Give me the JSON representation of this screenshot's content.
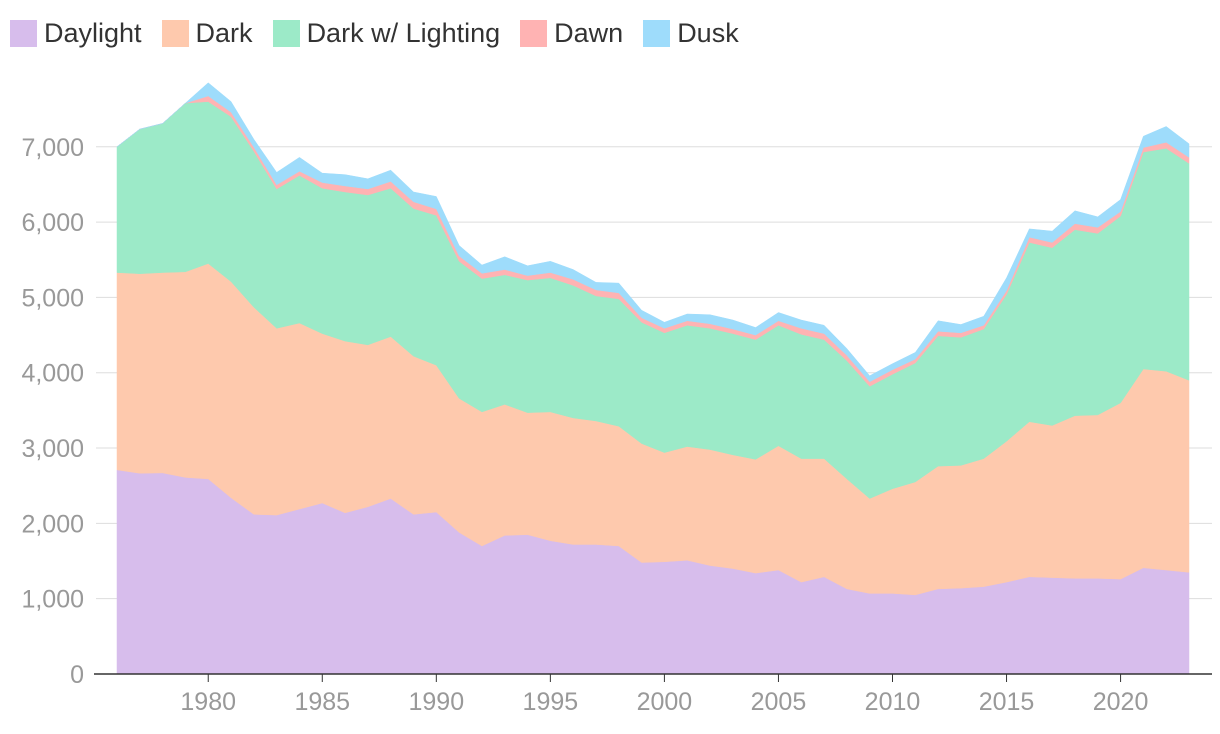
{
  "chart_data": {
    "type": "area",
    "stacked": true,
    "title": "",
    "xlabel": "",
    "ylabel": "",
    "x": [
      1976,
      1977,
      1978,
      1979,
      1980,
      1981,
      1982,
      1983,
      1984,
      1985,
      1986,
      1987,
      1988,
      1989,
      1990,
      1991,
      1992,
      1993,
      1994,
      1995,
      1996,
      1997,
      1998,
      1999,
      2000,
      2001,
      2002,
      2003,
      2004,
      2005,
      2006,
      2007,
      2008,
      2009,
      2010,
      2011,
      2012,
      2013,
      2014,
      2015,
      2016,
      2017,
      2018,
      2019,
      2020,
      2021,
      2022,
      2023
    ],
    "xlim": [
      1976,
      2023
    ],
    "ylim": [
      0,
      7900
    ],
    "x_ticks": [
      1980,
      1985,
      1990,
      1995,
      2000,
      2005,
      2010,
      2015,
      2020
    ],
    "y_ticks": [
      0,
      1000,
      2000,
      3000,
      4000,
      5000,
      6000,
      7000
    ],
    "y_tick_labels": [
      "0",
      "1,000",
      "2,000",
      "3,000",
      "4,000",
      "5,000",
      "6,000",
      "7,000"
    ],
    "grid": "horizontal",
    "legend_position": "top-left",
    "series": [
      {
        "name": "Daylight",
        "color": "#d7bdec",
        "values": [
          2710,
          2665,
          2670,
          2610,
          2590,
          2340,
          2120,
          2110,
          2190,
          2270,
          2140,
          2220,
          2330,
          2120,
          2150,
          1880,
          1700,
          1840,
          1850,
          1770,
          1720,
          1720,
          1700,
          1480,
          1490,
          1510,
          1440,
          1400,
          1340,
          1380,
          1220,
          1290,
          1130,
          1070,
          1070,
          1050,
          1130,
          1140,
          1160,
          1220,
          1290,
          1280,
          1270,
          1270,
          1260,
          1410,
          1380,
          1350
        ]
      },
      {
        "name": "Dark",
        "color": "#fec9ad",
        "values": [
          2620,
          2650,
          2660,
          2730,
          2860,
          2870,
          2750,
          2480,
          2470,
          2250,
          2280,
          2150,
          2150,
          2100,
          1950,
          1780,
          1780,
          1740,
          1620,
          1710,
          1680,
          1640,
          1590,
          1580,
          1450,
          1510,
          1540,
          1510,
          1510,
          1650,
          1640,
          1570,
          1460,
          1260,
          1390,
          1500,
          1630,
          1630,
          1700,
          1870,
          2060,
          2020,
          2160,
          2170,
          2340,
          2640,
          2640,
          2550
        ]
      },
      {
        "name": "Dark w/ Lighting",
        "color": "#9ceac8",
        "values": [
          1670,
          1920,
          1980,
          2240,
          2150,
          2190,
          2070,
          1850,
          1960,
          1930,
          1980,
          1990,
          1970,
          1960,
          1990,
          1820,
          1770,
          1720,
          1760,
          1780,
          1760,
          1660,
          1690,
          1610,
          1590,
          1610,
          1610,
          1610,
          1590,
          1600,
          1650,
          1580,
          1570,
          1490,
          1520,
          1580,
          1730,
          1700,
          1720,
          1950,
          2380,
          2360,
          2470,
          2410,
          2480,
          2880,
          2960,
          2880
        ]
      },
      {
        "name": "Dawn",
        "color": "#ffb3b3",
        "values": [
          0,
          0,
          0,
          0,
          75,
          60,
          55,
          55,
          55,
          75,
          80,
          80,
          90,
          90,
          85,
          70,
          70,
          70,
          60,
          70,
          80,
          80,
          80,
          60,
          60,
          60,
          60,
          60,
          60,
          60,
          80,
          80,
          70,
          60,
          60,
          50,
          60,
          60,
          50,
          50,
          70,
          70,
          80,
          80,
          60,
          60,
          80,
          80
        ]
      },
      {
        "name": "Dusk",
        "color": "#9edcfb",
        "values": [
          0,
          0,
          0,
          0,
          175,
          140,
          105,
          165,
          185,
          125,
          150,
          135,
          150,
          130,
          165,
          140,
          110,
          170,
          130,
          150,
          130,
          100,
          130,
          100,
          80,
          90,
          120,
          120,
          100,
          110,
          110,
          110,
          90,
          80,
          80,
          90,
          140,
          110,
          120,
          170,
          110,
          150,
          170,
          140,
          160,
          150,
          210,
          180
        ]
      }
    ]
  }
}
